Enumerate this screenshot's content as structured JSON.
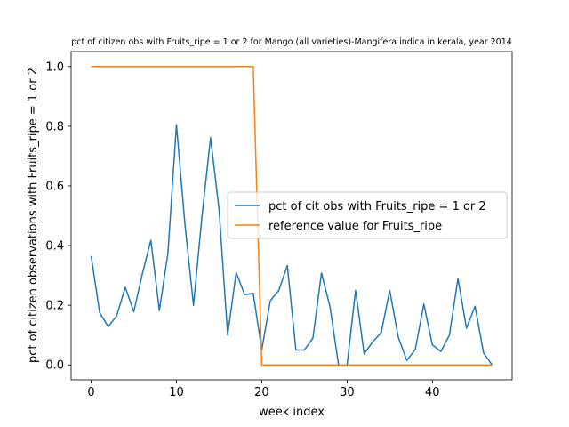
{
  "chart_data": {
    "type": "line",
    "title": "pct of citizen obs with Fruits_ripe = 1 or 2 for Mango (all varieties)-Mangifera indica in kerala, year 2014",
    "xlabel": "week index",
    "ylabel": "pct of citizen observations with Fruits_ripe = 1 or 2",
    "xlim": [
      -2.35,
      49.35
    ],
    "ylim": [
      -0.05,
      1.05
    ],
    "xticks": [
      0,
      10,
      20,
      30,
      40
    ],
    "yticks": [
      0.0,
      0.2,
      0.4,
      0.6,
      0.8,
      1.0
    ],
    "ytick_labels": [
      "0.0",
      "0.2",
      "0.4",
      "0.6",
      "0.8",
      "1.0"
    ],
    "grid": false,
    "legend_position": "center-right",
    "series": [
      {
        "name": "pct of cit obs with Fruits_ripe = 1 or 2",
        "color": "#1f77b4",
        "x": [
          0,
          1,
          2,
          3,
          4,
          5,
          6,
          7,
          8,
          9,
          10,
          11,
          12,
          13,
          14,
          15,
          16,
          17,
          18,
          19,
          20,
          21,
          22,
          23,
          24,
          25,
          26,
          27,
          28,
          29,
          30,
          31,
          32,
          33,
          34,
          35,
          36,
          37,
          38,
          39,
          40,
          41,
          42,
          43,
          44,
          45,
          46,
          47
        ],
        "y": [
          0.365,
          0.175,
          0.128,
          0.165,
          0.26,
          0.178,
          0.305,
          0.418,
          0.182,
          0.375,
          0.805,
          0.47,
          0.2,
          0.5,
          0.762,
          0.52,
          0.1,
          0.31,
          0.235,
          0.24,
          0.05,
          0.215,
          0.25,
          0.333,
          0.05,
          0.05,
          0.09,
          0.308,
          0.195,
          0.0,
          0.0,
          0.25,
          0.037,
          0.077,
          0.108,
          0.25,
          0.093,
          0.015,
          0.052,
          0.204,
          0.067,
          0.045,
          0.1,
          0.29,
          0.123,
          0.197,
          0.04,
          0.0
        ]
      },
      {
        "name": "reference value for Fruits_ripe",
        "color": "#ff7f0e",
        "x": [
          0,
          1,
          2,
          3,
          4,
          5,
          6,
          7,
          8,
          9,
          10,
          11,
          12,
          13,
          14,
          15,
          16,
          17,
          18,
          19,
          20,
          21,
          22,
          23,
          24,
          25,
          26,
          27,
          28,
          29,
          30,
          31,
          32,
          33,
          34,
          35,
          36,
          37,
          38,
          39,
          40,
          41,
          42,
          43,
          44,
          45,
          46,
          47
        ],
        "y": [
          1,
          1,
          1,
          1,
          1,
          1,
          1,
          1,
          1,
          1,
          1,
          1,
          1,
          1,
          1,
          1,
          1,
          1,
          1,
          1,
          0,
          0,
          0,
          0,
          0,
          0,
          0,
          0,
          0,
          0,
          0,
          0,
          0,
          0,
          0,
          0,
          0,
          0,
          0,
          0,
          0,
          0,
          0,
          0,
          0,
          0,
          0,
          0
        ]
      }
    ]
  }
}
